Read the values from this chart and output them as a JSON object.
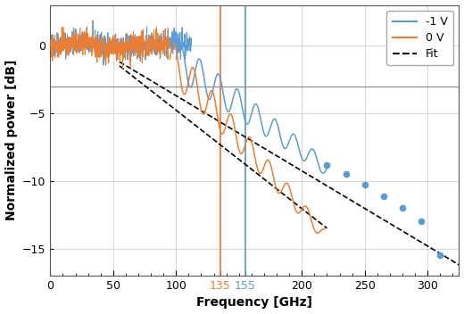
{
  "blue_color": "#5b9bd5",
  "orange_color": "#ed7d31",
  "vline_blue": 155,
  "vline_orange": 135,
  "hline_y": -3,
  "xlim": [
    0,
    325
  ],
  "ylim": [
    -17,
    3
  ],
  "xlabel": "Frequency [GHz]",
  "ylabel": "Normalized power [dB]",
  "legend_labels": [
    "-1 V",
    "0 V",
    "Fit"
  ],
  "blue_dots_x": [
    220,
    235,
    250,
    265,
    280,
    295,
    310
  ],
  "blue_dots_y": [
    -8.8,
    -9.5,
    -10.3,
    -11.1,
    -12.0,
    -13.0,
    -15.5
  ],
  "fit_blue_x0": 55,
  "fit_blue_y0": -1.2,
  "fit_blue_x1": 325,
  "fit_blue_y1": -16.2,
  "fit_orange_x0": 55,
  "fit_orange_y0": -1.5,
  "fit_orange_x1": 220,
  "fit_orange_y1": -13.5,
  "grid_color": "#d0d0d0",
  "bg_color": "#ffffff",
  "noise_seed": 42
}
